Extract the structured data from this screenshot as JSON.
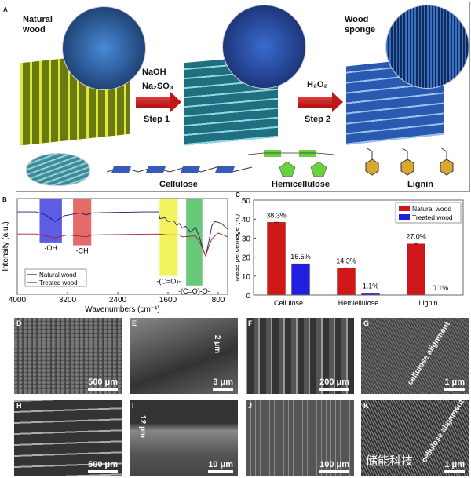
{
  "panel_labels": [
    "A",
    "B",
    "C",
    "D",
    "E",
    "F",
    "G",
    "H",
    "I",
    "J",
    "K"
  ],
  "panelA": {
    "natural_wood": "Natural wood",
    "step1_reagents": [
      "NaOH",
      "Na₂SO₃"
    ],
    "step1": "Step 1",
    "step2_reagent": "H₂O₂",
    "step2": "Step 2",
    "wood_sponge": "Wood sponge",
    "components": [
      "Cellulose",
      "Hemicellulose",
      "Lignin"
    ],
    "colors": {
      "natural": "#c8d62a",
      "step1": "#2f9aa8",
      "sponge": "#3a78c8",
      "arrow": "#c01818"
    }
  },
  "chart_data": [
    {
      "type": "line",
      "xlabel": "Wavenumbers (cm⁻¹)",
      "ylabel": "Intensity (a.u.)",
      "xlim": [
        4000,
        650
      ],
      "x_reversed": true,
      "xticks": [
        4000,
        3200,
        2400,
        1600,
        800
      ],
      "legend": "bottom-left",
      "bands": [
        {
          "label": "-OH",
          "range": [
            3644,
            3289
          ],
          "color": "#4040e0"
        },
        {
          "label": "-CH",
          "range": [
            3111,
            2822
          ],
          "color": "#e05050"
        },
        {
          "label": "-(C=O)-",
          "range": [
            1733,
            1444
          ],
          "color": "#f0f040"
        },
        {
          "label": "-(C=O)-O-",
          "range": [
            1311,
            1053
          ],
          "color": "#50c060"
        }
      ],
      "series": [
        {
          "name": "Natural wood",
          "color": "#1c1c6c",
          "points": [
            [
              4000,
              0.86
            ],
            [
              3700,
              0.86
            ],
            [
              3550,
              0.83
            ],
            [
              3400,
              0.76
            ],
            [
              3250,
              0.82
            ],
            [
              3000,
              0.85
            ],
            [
              2900,
              0.83
            ],
            [
              2800,
              0.85
            ],
            [
              2000,
              0.86
            ],
            [
              1750,
              0.86
            ],
            [
              1730,
              0.79
            ],
            [
              1650,
              0.8
            ],
            [
              1600,
              0.76
            ],
            [
              1510,
              0.77
            ],
            [
              1460,
              0.72
            ],
            [
              1420,
              0.74
            ],
            [
              1370,
              0.69
            ],
            [
              1320,
              0.71
            ],
            [
              1240,
              0.65
            ],
            [
              1160,
              0.7
            ],
            [
              1100,
              0.6
            ],
            [
              1030,
              0.45
            ],
            [
              1000,
              0.4
            ],
            [
              950,
              0.55
            ],
            [
              900,
              0.72
            ],
            [
              850,
              0.76
            ],
            [
              750,
              0.74
            ],
            [
              650,
              0.68
            ]
          ]
        },
        {
          "name": "Treated wood",
          "color": "#a02030",
          "points": [
            [
              4000,
              0.63
            ],
            [
              3700,
              0.63
            ],
            [
              3400,
              0.59
            ],
            [
              3200,
              0.62
            ],
            [
              2900,
              0.6
            ],
            [
              2800,
              0.62
            ],
            [
              1750,
              0.63
            ],
            [
              1600,
              0.62
            ],
            [
              1420,
              0.62
            ],
            [
              1370,
              0.6
            ],
            [
              1160,
              0.61
            ],
            [
              1100,
              0.55
            ],
            [
              1030,
              0.45
            ],
            [
              1000,
              0.4
            ],
            [
              950,
              0.5
            ],
            [
              900,
              0.58
            ],
            [
              800,
              0.64
            ],
            [
              650,
              0.6
            ]
          ]
        }
      ]
    },
    {
      "type": "bar",
      "ylabel": "Mass percentage (%)",
      "ylim": [
        0,
        50
      ],
      "yticks": [
        0,
        10,
        20,
        30,
        40,
        50
      ],
      "legend": "top-right",
      "categories": [
        "Cellulose",
        "Hemiellulose",
        "Lignin"
      ],
      "series": [
        {
          "name": "Natural wood",
          "color": "#d01818",
          "values": [
            38.3,
            14.3,
            27.0
          ],
          "labels": [
            "38.3%",
            "14.3%",
            "27.0%"
          ]
        },
        {
          "name": "Treated wood",
          "color": "#2020e0",
          "values": [
            16.5,
            1.1,
            0.1
          ],
          "labels": [
            "16.5%",
            "1.1%",
            "0.1%"
          ]
        }
      ]
    }
  ],
  "sem": [
    {
      "label": "D",
      "scale": "500 μm"
    },
    {
      "label": "E",
      "scale": "3 μm",
      "annotation": "2 μm"
    },
    {
      "label": "F",
      "scale": "200 μm"
    },
    {
      "label": "G",
      "scale": "1 μm",
      "annotation": "cellulose alignment"
    },
    {
      "label": "H",
      "scale": "500 μm"
    },
    {
      "label": "I",
      "scale": "10 μm",
      "annotation": "12 μm"
    },
    {
      "label": "J",
      "scale": "100 μm"
    },
    {
      "label": "K",
      "scale": "1 μm",
      "annotation": "cellulose alignment"
    }
  ],
  "watermark": "储能科技"
}
